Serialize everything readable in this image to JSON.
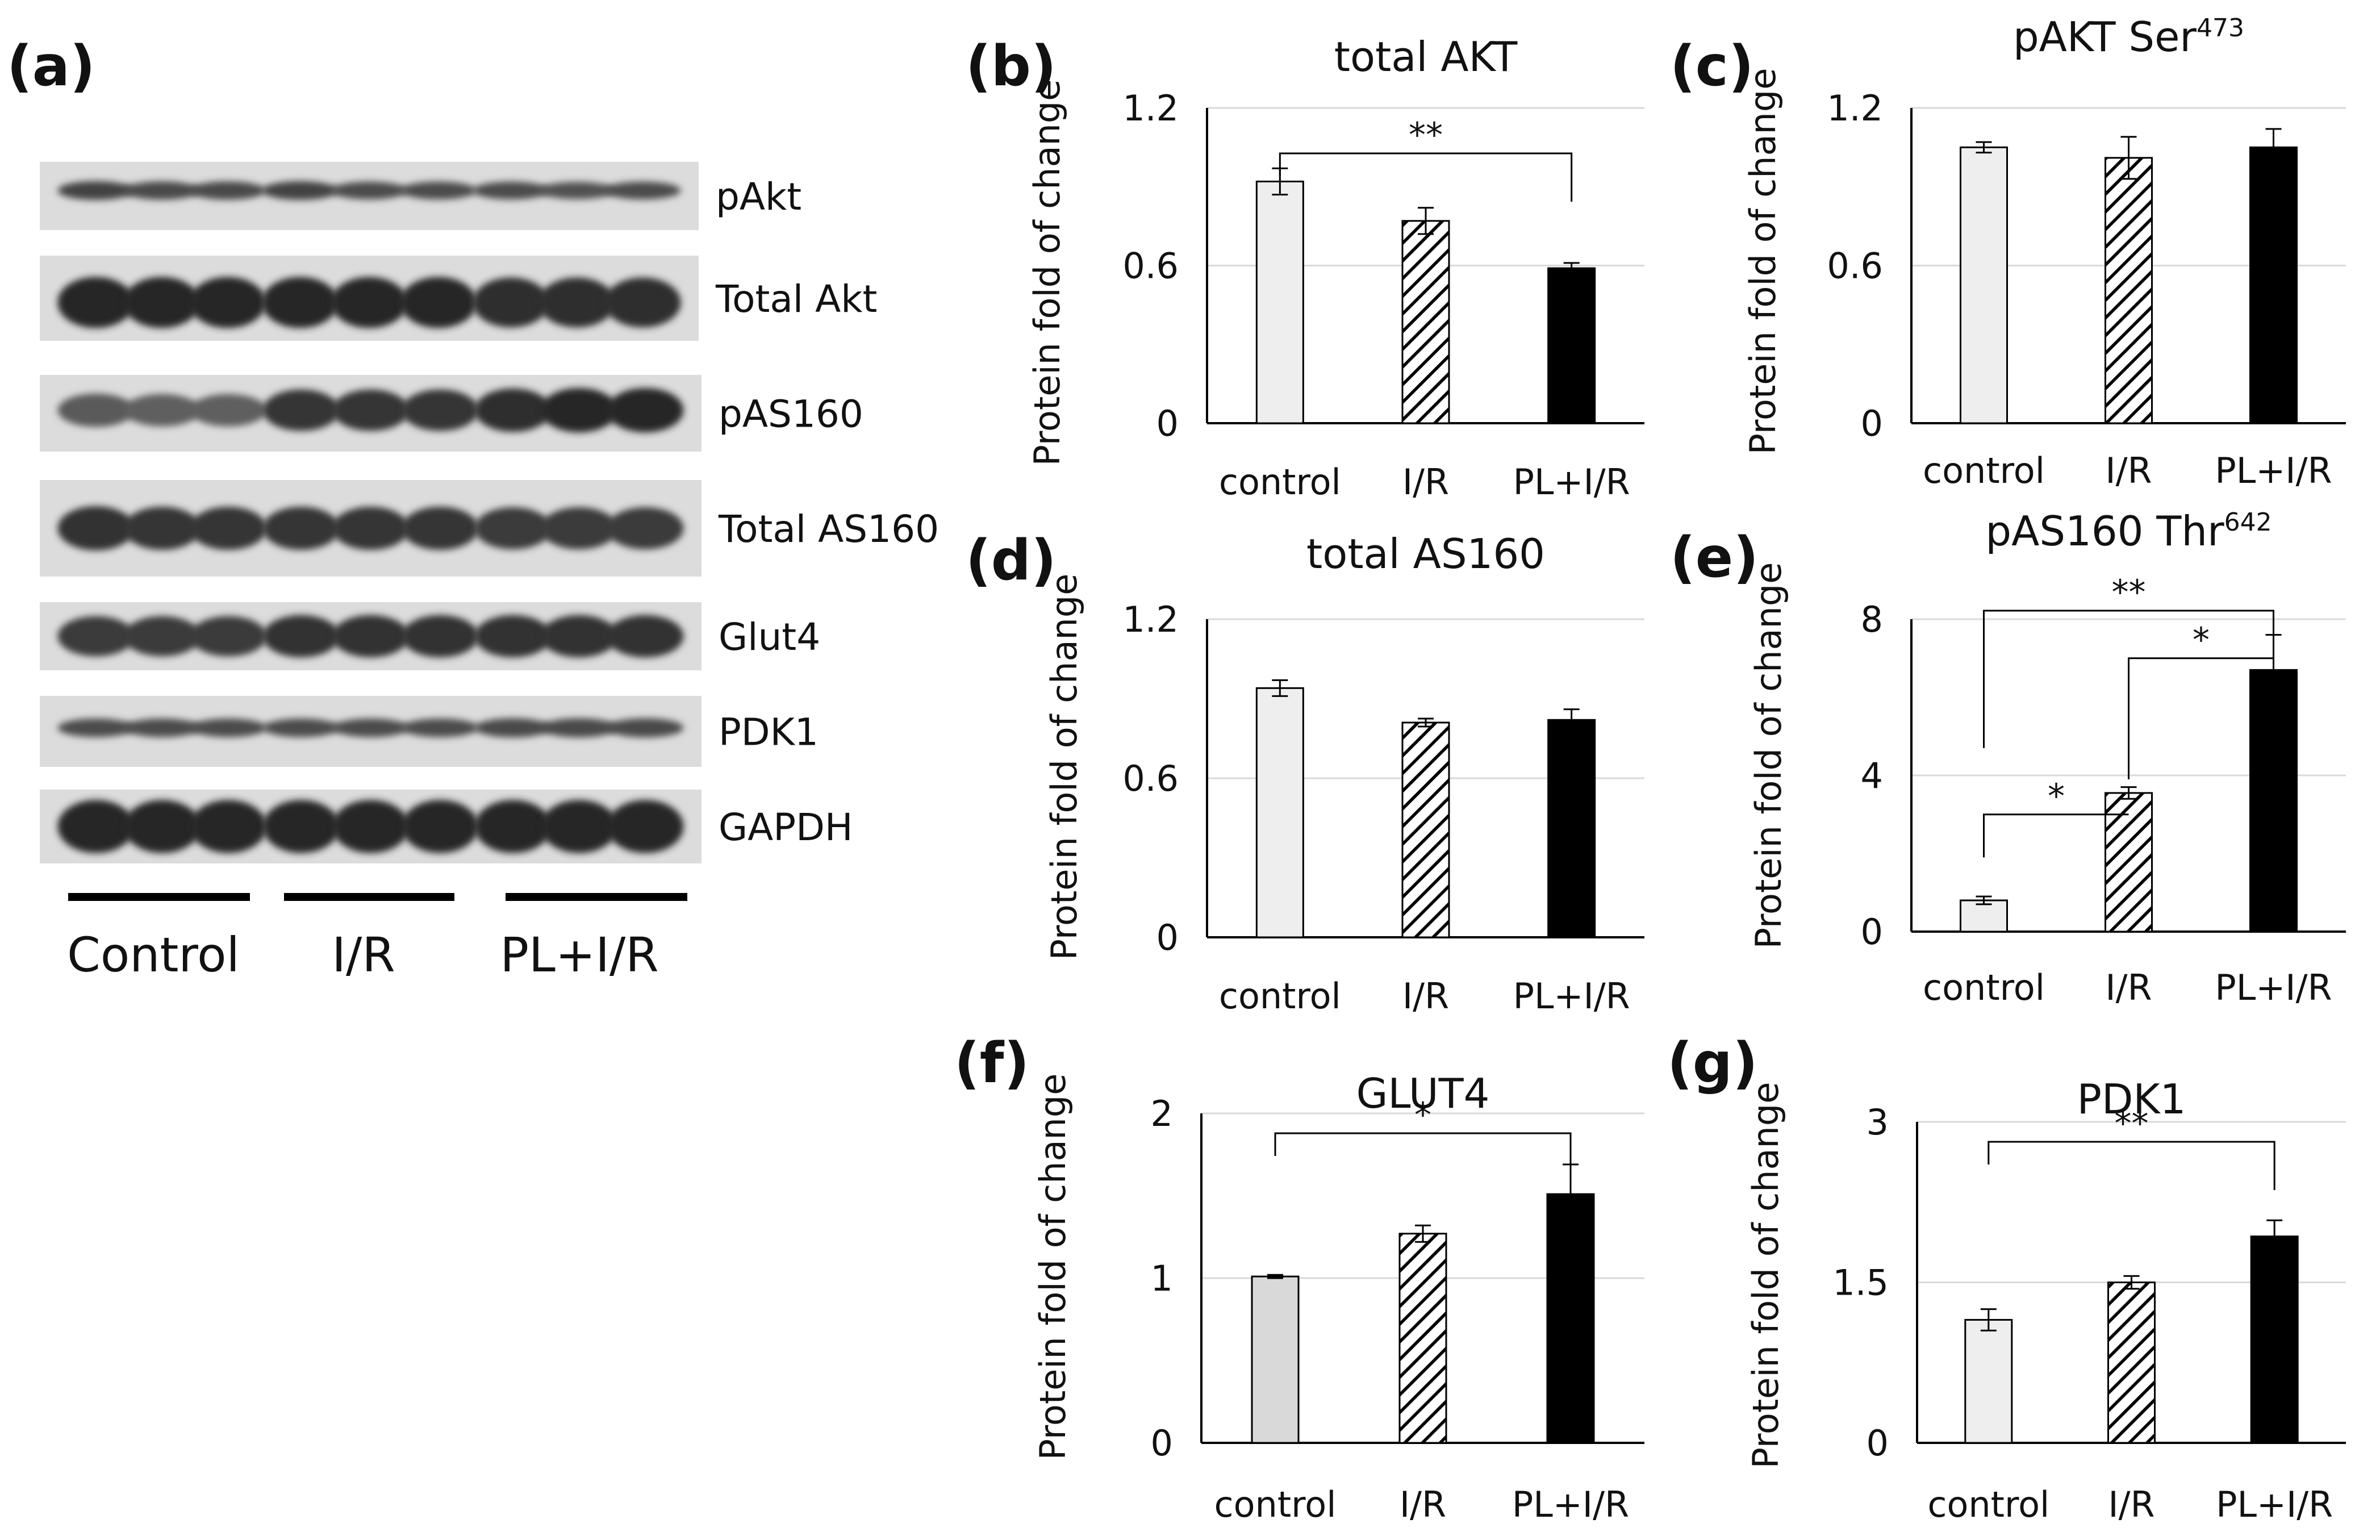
{
  "panel_labels": [
    "(a)",
    "(b)",
    "(c)",
    "(d)",
    "(e)",
    "(f)",
    "(g)"
  ],
  "blot": {
    "rows": [
      {
        "label": "pAkt",
        "intensities": [
          0.7,
          0.65,
          0.65,
          0.7,
          0.6,
          0.6,
          0.6,
          0.55,
          0.6
        ]
      },
      {
        "label": "Total Akt",
        "intensities": [
          1.0,
          1.0,
          1.0,
          1.0,
          1.0,
          1.0,
          0.95,
          0.95,
          0.95
        ]
      },
      {
        "label": "pAS160",
        "intensities": [
          0.45,
          0.4,
          0.4,
          0.85,
          0.85,
          0.85,
          0.95,
          1.0,
          1.0
        ]
      },
      {
        "label": "Total AS160",
        "intensities": [
          0.9,
          0.85,
          0.85,
          0.85,
          0.85,
          0.85,
          0.8,
          0.8,
          0.8
        ]
      },
      {
        "label": "Glut4",
        "intensities": [
          0.8,
          0.8,
          0.8,
          0.9,
          0.9,
          0.9,
          0.9,
          0.9,
          0.9
        ]
      },
      {
        "label": "PDK1",
        "intensities": [
          0.6,
          0.6,
          0.6,
          0.6,
          0.6,
          0.6,
          0.65,
          0.65,
          0.65
        ]
      },
      {
        "label": "GAPDH",
        "intensities": [
          1.0,
          1.0,
          1.0,
          1.0,
          1.0,
          1.0,
          1.0,
          1.0,
          1.0
        ]
      }
    ],
    "groups": [
      "Control",
      "I/R",
      "PL+I/R"
    ]
  },
  "bar_styles": [
    "light-fill",
    "diagonal-hatch",
    "solid-black"
  ],
  "colors": {
    "light_fill": "#eeeeee",
    "light_fill_f": "#d9d9d9",
    "black": "#000000",
    "grid": "#d9d9d9"
  },
  "chart_data": [
    {
      "panel": "(b)",
      "type": "bar",
      "title": "total AKT",
      "ylabel": "Protein fold of change",
      "categories": [
        "control",
        "I/R",
        "PL+I/R"
      ],
      "values": [
        0.92,
        0.77,
        0.59
      ],
      "errors": [
        0.05,
        0.05,
        0.02
      ],
      "ylim": [
        0,
        1.2
      ],
      "yticks": [
        "0",
        "0.6",
        "1.2"
      ],
      "significance": [
        {
          "from": 0,
          "to": 2,
          "label": "**"
        }
      ]
    },
    {
      "panel": "(c)",
      "type": "bar",
      "title": "pAKT Ser",
      "title_sup": "473",
      "ylabel": "Protein fold of change",
      "categories": [
        "control",
        "I/R",
        "PL+I/R"
      ],
      "values": [
        1.05,
        1.01,
        1.05
      ],
      "errors": [
        0.02,
        0.08,
        0.07
      ],
      "ylim": [
        0,
        1.2
      ],
      "yticks": [
        "0",
        "0.6",
        "1.2"
      ],
      "significance": []
    },
    {
      "panel": "(d)",
      "type": "bar",
      "title": "total AS160",
      "ylabel": "Protein fold of change",
      "categories": [
        "control",
        "I/R",
        "PL+I/R"
      ],
      "values": [
        0.94,
        0.81,
        0.82
      ],
      "errors": [
        0.03,
        0.015,
        0.04
      ],
      "ylim": [
        0,
        1.2
      ],
      "yticks": [
        "0",
        "0.6",
        "1.2"
      ],
      "significance": []
    },
    {
      "panel": "(e)",
      "type": "bar",
      "title": "pAS160 Thr",
      "title_sup": "642",
      "ylabel": "Protein fold of change",
      "categories": [
        "control",
        "I/R",
        "PL+I/R"
      ],
      "values": [
        0.8,
        3.55,
        6.7
      ],
      "errors": [
        0.1,
        0.15,
        0.9
      ],
      "ylim": [
        0,
        8
      ],
      "yticks": [
        "0",
        "4",
        "8"
      ],
      "significance": [
        {
          "from": 0,
          "to": 2,
          "label": "**"
        },
        {
          "from": 1,
          "to": 2,
          "label": "*"
        },
        {
          "from": 0,
          "to": 1,
          "label": "*"
        }
      ]
    },
    {
      "panel": "(f)",
      "type": "bar",
      "title": "GLUT4",
      "ylabel": "Protein fold of change",
      "categories": [
        "control",
        "I/R",
        "PL+I/R"
      ],
      "values": [
        1.01,
        1.27,
        1.51
      ],
      "errors": [
        0.01,
        0.05,
        0.18
      ],
      "ylim": [
        0,
        2
      ],
      "yticks": [
        "0",
        "1",
        "2"
      ],
      "significance": [
        {
          "from": 0,
          "to": 2,
          "label": "*"
        }
      ]
    },
    {
      "panel": "(g)",
      "type": "bar",
      "title": "PDK1",
      "ylabel": "Protein fold of change",
      "categories": [
        "control",
        "I/R",
        "PL+I/R"
      ],
      "values": [
        1.15,
        1.5,
        1.93
      ],
      "errors": [
        0.1,
        0.06,
        0.15
      ],
      "ylim": [
        0,
        3
      ],
      "yticks": [
        "0",
        "1.5",
        "3"
      ],
      "significance": [
        {
          "from": 0,
          "to": 2,
          "label": "**"
        }
      ]
    }
  ]
}
